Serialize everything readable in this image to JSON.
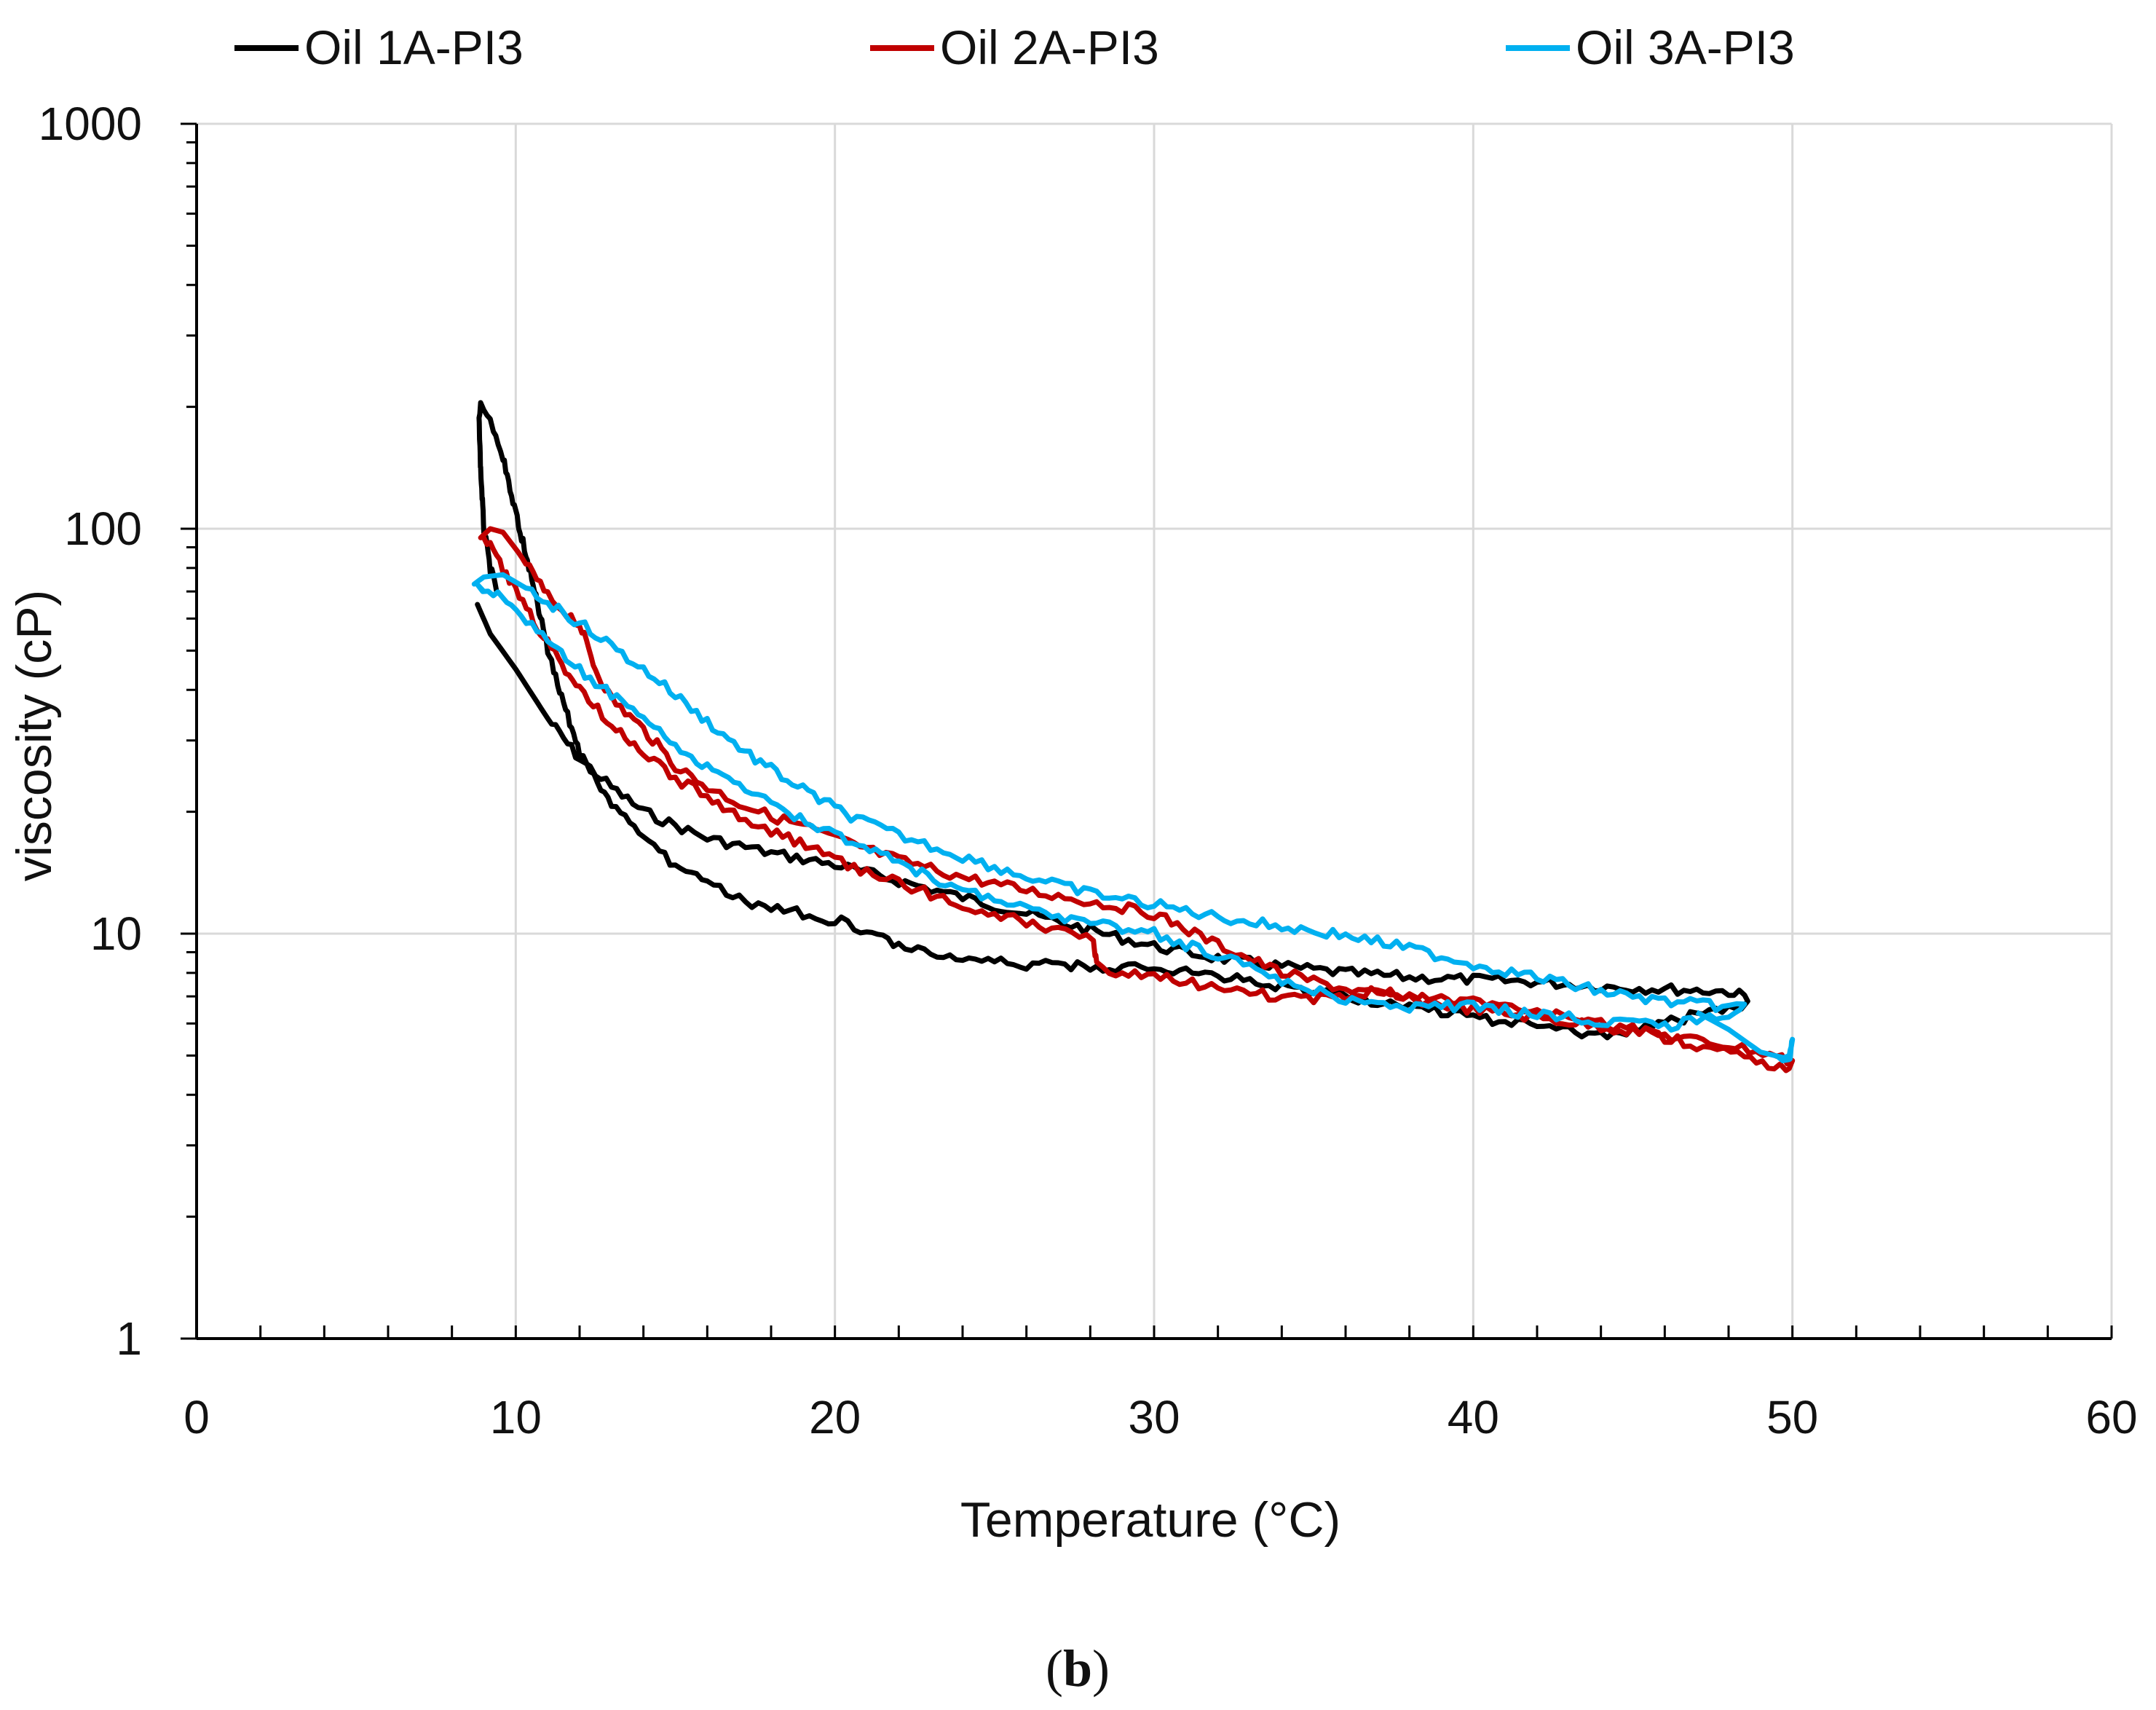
{
  "chart_data": {
    "type": "line",
    "title": "",
    "xlabel": "Temperature (°C)",
    "ylabel": "viscosity (cP)",
    "xlim": [
      0,
      60
    ],
    "ylim": [
      1,
      1000
    ],
    "yscale": "log",
    "x_ticks": [
      0,
      10,
      20,
      30,
      40,
      50,
      60
    ],
    "x_tick_labels": [
      "0",
      "10",
      "20",
      "30",
      "40",
      "50",
      "60"
    ],
    "y_ticks": [
      1,
      10,
      100,
      1000
    ],
    "y_tick_labels": [
      "1",
      "10",
      "100",
      "1000"
    ],
    "grid": true,
    "legend_position": "top",
    "caption": {
      "open": "(",
      "letter": "b",
      "close": ")"
    },
    "series": [
      {
        "name": "Oil 1A-PI3",
        "color": "#000000",
        "points": [
          [
            8.8,
            65
          ],
          [
            9.2,
            55
          ],
          [
            10,
            45
          ],
          [
            11,
            34
          ],
          [
            12,
            27
          ],
          [
            13,
            23
          ],
          [
            14,
            20
          ],
          [
            15,
            18.5
          ],
          [
            16,
            17.2
          ],
          [
            17,
            16.5
          ],
          [
            18,
            15.8
          ],
          [
            19,
            15.3
          ],
          [
            20,
            14.8
          ],
          [
            22,
            13.5
          ],
          [
            24,
            12.3
          ],
          [
            26,
            11.2
          ],
          [
            28,
            10.2
          ],
          [
            30,
            9.3
          ],
          [
            32,
            8.7
          ],
          [
            34,
            8.3
          ],
          [
            36,
            8.0
          ],
          [
            38,
            7.8
          ],
          [
            40,
            7.7
          ],
          [
            42,
            7.6
          ],
          [
            44,
            7.4
          ],
          [
            46,
            7.3
          ],
          [
            48,
            7.2
          ],
          [
            48.5,
            7.0
          ],
          [
            48.6,
            6.8
          ],
          [
            48,
            6.5
          ],
          [
            47,
            6.3
          ],
          [
            46,
            6.0
          ],
          [
            44,
            5.6
          ],
          [
            42,
            5.9
          ],
          [
            40,
            6.2
          ],
          [
            38,
            6.6
          ],
          [
            36,
            7.0
          ],
          [
            34,
            7.4
          ],
          [
            32,
            7.9
          ],
          [
            30,
            8.2
          ],
          [
            28,
            8.3
          ],
          [
            26,
            8.4
          ],
          [
            24,
            8.6
          ],
          [
            22,
            9.2
          ],
          [
            21,
            10.2
          ],
          [
            20,
            10.8
          ],
          [
            19,
            11.2
          ],
          [
            18,
            11.5
          ],
          [
            17,
            12.2
          ],
          [
            16,
            13.2
          ],
          [
            15,
            14.8
          ],
          [
            14,
            17
          ],
          [
            13,
            21
          ],
          [
            12,
            28
          ],
          [
            11.5,
            37
          ],
          [
            11,
            50
          ],
          [
            10.5,
            75
          ],
          [
            10,
            110
          ],
          [
            9.6,
            150
          ],
          [
            9.3,
            175
          ],
          [
            9.1,
            190
          ],
          [
            8.9,
            200
          ],
          [
            8.85,
            185
          ],
          [
            8.9,
            140
          ],
          [
            9.0,
            100
          ],
          [
            9.2,
            80
          ],
          [
            9.4,
            70
          ]
        ]
      },
      {
        "name": "Oil 2A-PI3",
        "color": "#c00000",
        "points": [
          [
            8.9,
            95
          ],
          [
            9.2,
            100
          ],
          [
            9.6,
            98
          ],
          [
            10.2,
            85
          ],
          [
            11,
            68
          ],
          [
            11.6,
            62
          ],
          [
            12,
            58
          ],
          [
            12.5,
            45
          ],
          [
            13,
            38
          ],
          [
            14,
            32
          ],
          [
            15,
            26
          ],
          [
            16,
            23
          ],
          [
            17,
            21
          ],
          [
            18,
            19.5
          ],
          [
            19,
            18.5
          ],
          [
            20,
            17.2
          ],
          [
            22,
            15.2
          ],
          [
            24,
            13.8
          ],
          [
            26,
            12.8
          ],
          [
            28,
            12.0
          ],
          [
            30,
            11.2
          ],
          [
            32,
            9.4
          ],
          [
            34,
            8.0
          ],
          [
            36,
            7.3
          ],
          [
            38,
            6.9
          ],
          [
            40,
            6.5
          ],
          [
            42,
            6.2
          ],
          [
            44,
            5.9
          ],
          [
            46,
            5.6
          ],
          [
            48,
            5.3
          ],
          [
            49.5,
            5.0
          ],
          [
            50,
            4.8
          ],
          [
            49.8,
            4.6
          ],
          [
            48.5,
            5.0
          ],
          [
            47,
            5.3
          ],
          [
            45,
            5.8
          ],
          [
            43,
            6.2
          ],
          [
            41,
            6.6
          ],
          [
            39,
            6.9
          ],
          [
            37,
            7.2
          ],
          [
            35,
            6.9
          ],
          [
            33,
            7.1
          ],
          [
            31,
            7.6
          ],
          [
            29,
            8.0
          ],
          [
            28.2,
            8.3
          ],
          [
            28.1,
            9.8
          ],
          [
            27,
            10.2
          ],
          [
            26,
            10.6
          ],
          [
            25,
            11.2
          ],
          [
            24,
            11.8
          ],
          [
            22,
            13.3
          ],
          [
            20,
            15.2
          ],
          [
            18,
            18
          ],
          [
            17,
            19.5
          ],
          [
            16,
            22
          ],
          [
            15,
            24
          ],
          [
            14,
            28
          ],
          [
            13,
            33
          ],
          [
            12,
            40
          ],
          [
            11,
            52
          ],
          [
            10,
            70
          ],
          [
            9.4,
            85
          ],
          [
            9.0,
            95
          ]
        ]
      },
      {
        "name": "Oil 3A-PI3",
        "color": "#00b0f0",
        "points": [
          [
            8.7,
            73
          ],
          [
            9.0,
            76
          ],
          [
            9.6,
            77
          ],
          [
            10.5,
            70
          ],
          [
            11.5,
            62
          ],
          [
            12.5,
            55
          ],
          [
            13.5,
            48
          ],
          [
            14.5,
            42
          ],
          [
            15.5,
            36
          ],
          [
            16.5,
            31
          ],
          [
            17.5,
            27
          ],
          [
            18.5,
            24
          ],
          [
            19.5,
            21.5
          ],
          [
            20.5,
            19.5
          ],
          [
            22,
            17.5
          ],
          [
            24,
            15.5
          ],
          [
            26,
            13.8
          ],
          [
            28,
            12.6
          ],
          [
            30,
            11.8
          ],
          [
            32,
            11.0
          ],
          [
            34,
            10.4
          ],
          [
            36,
            9.9
          ],
          [
            38,
            9.2
          ],
          [
            40,
            8.4
          ],
          [
            42,
            7.8
          ],
          [
            44,
            7.2
          ],
          [
            46,
            6.8
          ],
          [
            48,
            6.6
          ],
          [
            48.5,
            6.6
          ],
          [
            48.2,
            6.3
          ],
          [
            47,
            6.1
          ],
          [
            46,
            5.9
          ],
          [
            44,
            6.1
          ],
          [
            42,
            6.3
          ],
          [
            40,
            6.6
          ],
          [
            38,
            6.6
          ],
          [
            36,
            6.8
          ],
          [
            34,
            7.7
          ],
          [
            32,
            8.8
          ],
          [
            30,
            10.0
          ],
          [
            28,
            10.6
          ],
          [
            26,
            11.5
          ],
          [
            24,
            12.8
          ],
          [
            22,
            15.0
          ],
          [
            20,
            17.5
          ],
          [
            18,
            21
          ],
          [
            17,
            23
          ],
          [
            16,
            26
          ],
          [
            15,
            29
          ],
          [
            14,
            34
          ],
          [
            13,
            39
          ],
          [
            12,
            45
          ],
          [
            11,
            53
          ],
          [
            10,
            62
          ],
          [
            9.3,
            70
          ],
          [
            8.8,
            73
          ],
          [
            9.0,
            70
          ]
        ]
      }
    ],
    "extra_branches": [
      {
        "series": "Oil 3A-PI3",
        "points": [
          [
            47,
            6.4
          ],
          [
            48,
            5.8
          ],
          [
            49,
            5.1
          ],
          [
            49.9,
            4.9
          ],
          [
            50,
            5.5
          ],
          [
            49.9,
            4.8
          ],
          [
            49.5,
            5.0
          ]
        ]
      }
    ]
  }
}
